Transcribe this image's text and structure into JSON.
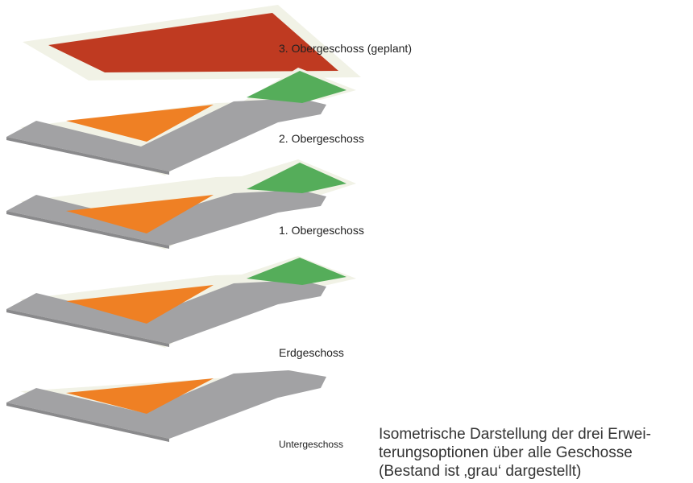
{
  "colors": {
    "existing": "#a2a2a4",
    "option_orange": "#ef8024",
    "option_green": "#55ad5a",
    "planned_red": "#bf3a21",
    "plate": "#f1f2e6"
  },
  "floors": [
    {
      "label": "3. Obergeschoss (geplant)",
      "options": [
        "red"
      ]
    },
    {
      "label": "2. Obergeschoss",
      "options": [
        "orange",
        "green"
      ]
    },
    {
      "label": "1. Obergeschoss",
      "options": [
        "orange",
        "green"
      ]
    },
    {
      "label": "Erdgeschoss",
      "options": [
        "orange",
        "green"
      ]
    },
    {
      "label": "Untergeschoss",
      "options": [
        "orange"
      ]
    }
  ],
  "caption": {
    "line1": "Isometrische Darstellung der drei Erwei-",
    "line2": "terungsoptionen über alle Geschosse",
    "line3": "(Bestand ist ‚grau‘ dargestellt)"
  }
}
